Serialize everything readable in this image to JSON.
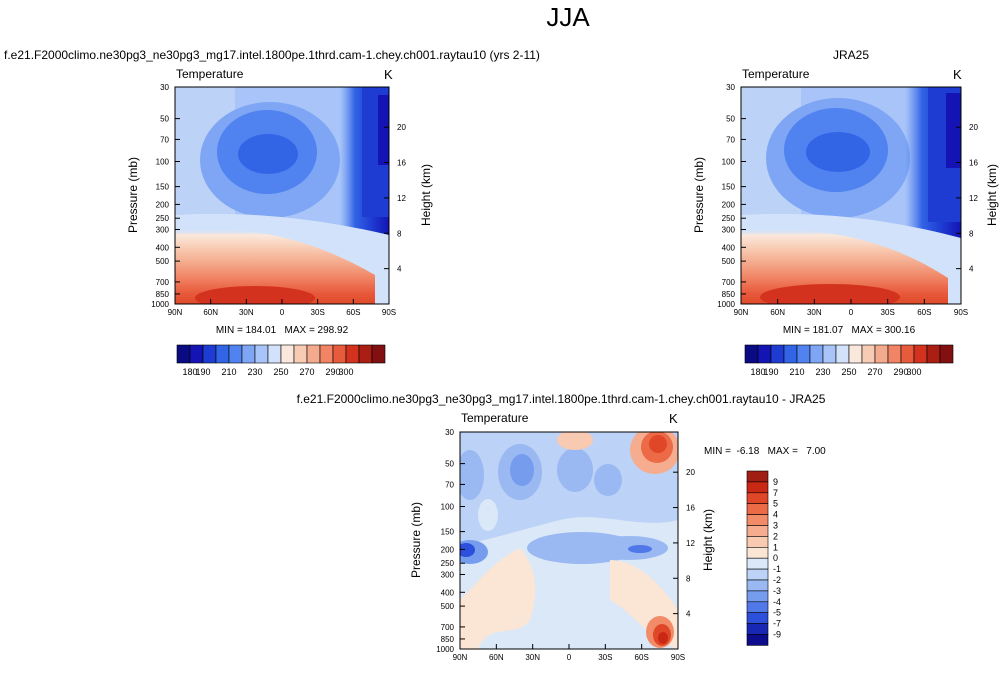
{
  "page_title": "JJA",
  "chart_data": [
    {
      "type": "heatmap",
      "title": "f.e21.F2000climo.ne30pg3_ne30pg3_mg17.intel.1800pe.1thrd.cam-1.chey.ch001.raytau10 (yrs 2-11)",
      "subtitle": "Temperature",
      "units": "K",
      "xlabel": "",
      "ylabel": "Pressure (mb)",
      "y2label": "Height (km)",
      "x_ticks": [
        "90N",
        "60N",
        "30N",
        "0",
        "30S",
        "60S",
        "90S"
      ],
      "y_ticks": [
        30,
        50,
        70,
        100,
        150,
        200,
        250,
        300,
        400,
        500,
        700,
        850,
        1000
      ],
      "y2_ticks": [
        20,
        16,
        12,
        8,
        4
      ],
      "ylim": [
        1000,
        30
      ],
      "stats": "MIN = 184.01   MAX = 298.92",
      "colorbar_labels": [
        "180",
        "190",
        "210",
        "230",
        "250",
        "270",
        "290",
        "300"
      ],
      "colorbar_colors": [
        "#0a0a82",
        "#1414b4",
        "#1e3cd2",
        "#3264e6",
        "#5082f0",
        "#7ea6f4",
        "#a8c4f8",
        "#d2e2fa",
        "#fbe8dc",
        "#f8ccb4",
        "#f4aa8c",
        "#f08464",
        "#e85a3c",
        "#d2321e",
        "#aa1e14",
        "#821010"
      ]
    },
    {
      "type": "heatmap",
      "title": "JRA25",
      "subtitle": "Temperature",
      "units": "K",
      "ylabel": "Pressure (mb)",
      "y2label": "Height (km)",
      "x_ticks": [
        "90N",
        "60N",
        "30N",
        "0",
        "30S",
        "60S",
        "90S"
      ],
      "y_ticks": [
        30,
        50,
        70,
        100,
        150,
        200,
        250,
        300,
        400,
        500,
        700,
        850,
        1000
      ],
      "y2_ticks": [
        20,
        16,
        12,
        8,
        4
      ],
      "ylim": [
        1000,
        30
      ],
      "stats": "MIN = 181.07   MAX = 300.16",
      "colorbar_labels": [
        "180",
        "190",
        "210",
        "230",
        "250",
        "270",
        "290",
        "300"
      ]
    },
    {
      "type": "heatmap",
      "title": "f.e21.F2000climo.ne30pg3_ne30pg3_mg17.intel.1800pe.1thrd.cam-1.chey.ch001.raytau10 - JRA25",
      "subtitle": "Temperature",
      "units": "K",
      "ylabel": "Pressure (mb)",
      "y2label": "Height (km)",
      "x_ticks": [
        "90N",
        "60N",
        "30N",
        "0",
        "30S",
        "60S",
        "90S"
      ],
      "y_ticks": [
        30,
        50,
        70,
        100,
        150,
        200,
        250,
        300,
        400,
        500,
        700,
        850,
        1000
      ],
      "y2_ticks": [
        20,
        16,
        12,
        8,
        4
      ],
      "ylim": [
        1000,
        30
      ],
      "stats": "MIN =  -6.18   MAX =   7.00",
      "colorbar_labels": [
        "9",
        "7",
        "5",
        "4",
        "3",
        "2",
        "1",
        "0",
        "-1",
        "-2",
        "-3",
        "-4",
        "-5",
        "-7",
        "-9"
      ],
      "colorbar_colors": [
        "#a01e14",
        "#c82814",
        "#e04628",
        "#ec6a46",
        "#f28c68",
        "#f6ac8e",
        "#f9cab2",
        "#fbe6d6",
        "#dae8f8",
        "#bcd2f6",
        "#9ab8f2",
        "#769cee",
        "#5078e8",
        "#2c50dc",
        "#1828b4",
        "#0c0c8c"
      ]
    }
  ]
}
